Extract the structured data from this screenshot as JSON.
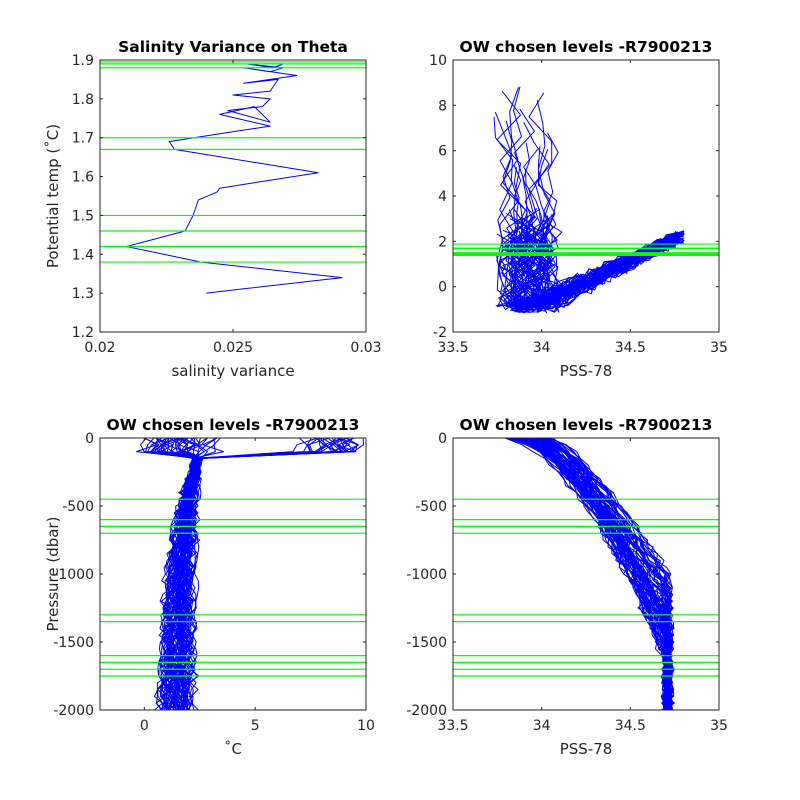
{
  "chart_data": [
    {
      "id": "p1",
      "type": "line",
      "title": "Salinity Variance on Theta",
      "xlabel": "salinity variance",
      "ylabel": "Potential temp (˚C)",
      "xlim": [
        0.02,
        0.03
      ],
      "ylim": [
        1.2,
        1.9
      ],
      "xticks": [
        0.02,
        0.025,
        0.03
      ],
      "xtick_labels": [
        "0.02",
        "0.025",
        "0.03"
      ],
      "yticks": [
        1.2,
        1.3,
        1.4,
        1.5,
        1.6,
        1.7,
        1.8,
        1.9
      ],
      "ytick_labels": [
        "1.2",
        "1.3",
        "1.4",
        "1.5",
        "1.6",
        "1.7",
        "1.8",
        "1.9"
      ],
      "series": [
        {
          "color": "#0000ff",
          "x": [
            0.024,
            0.0291,
            0.0238,
            0.021,
            0.0232,
            0.0235,
            0.0237,
            0.0244,
            0.0245,
            0.0282,
            0.0228,
            0.0226,
            0.0245,
            0.0264,
            0.0245,
            0.0258,
            0.0264,
            0.0248,
            0.0261,
            0.0264,
            0.025,
            0.0264,
            0.0267,
            0.0254,
            0.0274,
            0.0254,
            0.0264,
            0.0269,
            0.0255,
            0.0265,
            0.0269,
            0.0262,
            0.0264
          ],
          "y": [
            1.3,
            1.34,
            1.38,
            1.42,
            1.46,
            1.5,
            1.54,
            1.56,
            1.57,
            1.61,
            1.67,
            1.69,
            1.71,
            1.73,
            1.76,
            1.78,
            1.74,
            1.77,
            1.78,
            1.8,
            1.81,
            1.82,
            1.85,
            1.84,
            1.86,
            1.88,
            1.87,
            1.88,
            1.89,
            1.88,
            1.89,
            1.89,
            1.89
          ]
        }
      ],
      "levels": [
        1.38,
        1.42,
        1.46,
        1.5,
        1.67,
        1.7,
        1.88,
        1.89,
        1.895
      ]
    },
    {
      "id": "p2",
      "type": "line",
      "title": "OW chosen levels -R7900213",
      "xlabel": "PSS-78",
      "ylabel": "",
      "xlim": [
        33.5,
        35
      ],
      "ylim": [
        -2,
        10
      ],
      "xticks": [
        33.5,
        34,
        34.5,
        35
      ],
      "xtick_labels": [
        "33.5",
        "34",
        "34.5",
        "35"
      ],
      "yticks": [
        -2,
        0,
        2,
        4,
        6,
        8,
        10
      ],
      "ytick_labels": [
        "-2",
        "0",
        "2",
        "4",
        "6",
        "8",
        "10"
      ],
      "series_color": "#0000ff",
      "levels": [
        1.38,
        1.42,
        1.46,
        1.5,
        1.67,
        1.7,
        1.88
      ]
    },
    {
      "id": "p3",
      "type": "line",
      "title": "OW chosen levels -R7900213",
      "xlabel": "˚C",
      "ylabel": "Pressure (dbar)",
      "xlim": [
        -2,
        10
      ],
      "ylim": [
        -2000,
        0
      ],
      "xticks": [
        0,
        5,
        10
      ],
      "xtick_labels": [
        "0",
        "5",
        "10"
      ],
      "yticks": [
        -2000,
        -1500,
        -1000,
        -500,
        0
      ],
      "ytick_labels": [
        "-2000",
        "-1500",
        "-1000",
        "-500",
        "0"
      ],
      "series_color": "#0000ff",
      "levels": [
        -450,
        -600,
        -650,
        -700,
        -1300,
        -1350,
        -1600,
        -1650,
        -1700,
        -1750
      ]
    },
    {
      "id": "p4",
      "type": "line",
      "title": "OW chosen levels -R7900213",
      "xlabel": "PSS-78",
      "ylabel": "",
      "xlim": [
        33.5,
        35
      ],
      "ylim": [
        -2000,
        0
      ],
      "xticks": [
        33.5,
        34,
        34.5,
        35
      ],
      "xtick_labels": [
        "33.5",
        "34",
        "34.5",
        "35"
      ],
      "yticks": [
        -2000,
        -1500,
        -1000,
        -500,
        0
      ],
      "ytick_labels": [
        "-2000",
        "-1500",
        "-1000",
        "-500",
        "0"
      ],
      "series_color": "#0000ff",
      "levels": [
        -450,
        -600,
        -650,
        -700,
        -1300,
        -1350,
        -1600,
        -1650,
        -1700,
        -1750
      ]
    }
  ]
}
